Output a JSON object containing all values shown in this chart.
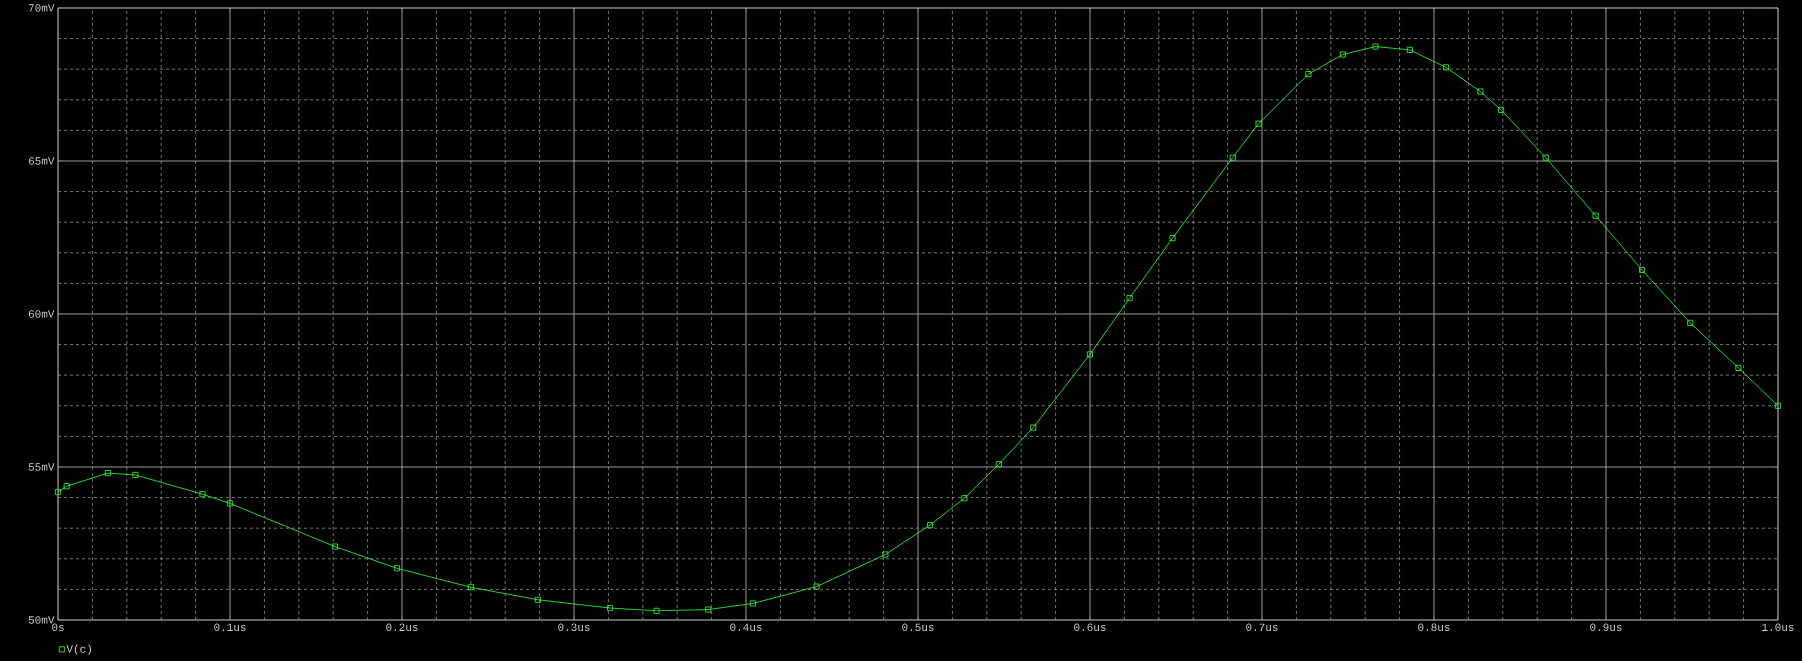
{
  "chart_data": {
    "type": "line",
    "legend": "bottom left",
    "grid": true,
    "marker": "square",
    "line_style": "solid",
    "xlim": [
      0,
      1.0
    ],
    "ylim": [
      50,
      70
    ],
    "xticks": [
      {
        "value": 0,
        "label": "0s"
      },
      {
        "value": 0.1,
        "label": "0.1us"
      },
      {
        "value": 0.2,
        "label": "0.2us"
      },
      {
        "value": 0.3,
        "label": "0.3us"
      },
      {
        "value": 0.4,
        "label": "0.4us"
      },
      {
        "value": 0.5,
        "label": "0.5us"
      },
      {
        "value": 0.6,
        "label": "0.6us"
      },
      {
        "value": 0.7,
        "label": "0.7us"
      },
      {
        "value": 0.8,
        "label": "0.8us"
      },
      {
        "value": 0.9,
        "label": "0.9us"
      },
      {
        "value": 1.0,
        "label": "1.0us"
      }
    ],
    "yticks": [
      {
        "value": 50,
        "label": "50mV"
      },
      {
        "value": 55,
        "label": "55mV"
      },
      {
        "value": 60,
        "label": "60mV"
      },
      {
        "value": 65,
        "label": "65mV"
      },
      {
        "value": 70,
        "label": "70mV"
      }
    ],
    "series": [
      {
        "name": "V(c)",
        "color": "#33ff33",
        "x": [
          0,
          0.005,
          0.029,
          0.045,
          0.084,
          0.1,
          0.161,
          0.197,
          0.24,
          0.279,
          0.321,
          0.348,
          0.378,
          0.404,
          0.441,
          0.481,
          0.507,
          0.527,
          0.547,
          0.567,
          0.6,
          0.623,
          0.648,
          0.683,
          0.698,
          0.727,
          0.747,
          0.766,
          0.786,
          0.807,
          0.827,
          0.839,
          0.865,
          0.894,
          0.921,
          0.949,
          0.977,
          1.0
        ],
        "values": [
          54.18,
          54.37,
          54.8,
          54.74,
          54.11,
          53.81,
          52.4,
          51.69,
          51.07,
          50.66,
          50.39,
          50.3,
          50.34,
          50.54,
          51.09,
          52.14,
          53.1,
          53.98,
          55.09,
          56.29,
          58.68,
          60.52,
          62.48,
          65.11,
          66.22,
          67.84,
          68.48,
          68.74,
          68.63,
          68.06,
          67.27,
          66.67,
          65.11,
          63.21,
          61.44,
          59.71,
          58.24,
          57.0
        ]
      }
    ]
  }
}
